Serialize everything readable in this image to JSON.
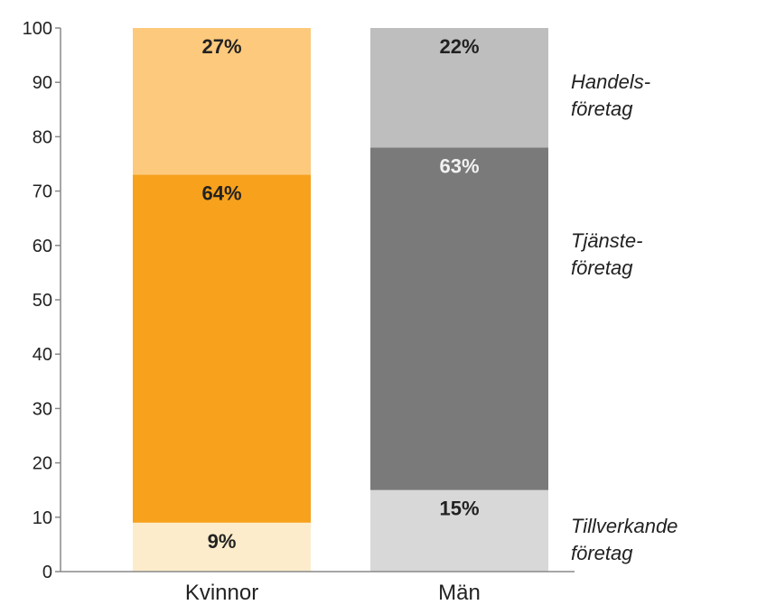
{
  "chart_data": {
    "type": "bar",
    "stacked": true,
    "categories": [
      "Kvinnor",
      "Män"
    ],
    "ylim": [
      0,
      100
    ],
    "yticks": [
      "0",
      "10",
      "20",
      "30",
      "40",
      "50",
      "60",
      "70",
      "80",
      "90",
      "100"
    ],
    "grid": false,
    "legend": "right",
    "series": [
      {
        "key": "tillverkande",
        "values": [
          9,
          15
        ],
        "labels": [
          "9%",
          "15%"
        ],
        "colors": [
          "#fdeccb",
          "#d8d8d8"
        ],
        "label_colors": [
          "#222222",
          "#222222"
        ],
        "name_lines": [
          "Tillverkande",
          "företag"
        ]
      },
      {
        "key": "tjanste",
        "values": [
          64,
          63
        ],
        "labels": [
          "64%",
          "63%"
        ],
        "colors": [
          "#f7a11c",
          "#7a7a7a"
        ],
        "label_colors": [
          "#222222",
          "#f2f2f2"
        ],
        "name_lines": [
          "Tjänste-",
          "företag"
        ]
      },
      {
        "key": "handels",
        "values": [
          27,
          22
        ],
        "labels": [
          "27%",
          "22%"
        ],
        "colors": [
          "#fdc97c",
          "#bebebe"
        ],
        "label_colors": [
          "#222222",
          "#222222"
        ],
        "name_lines": [
          "Handels-",
          "företag"
        ]
      }
    ]
  }
}
